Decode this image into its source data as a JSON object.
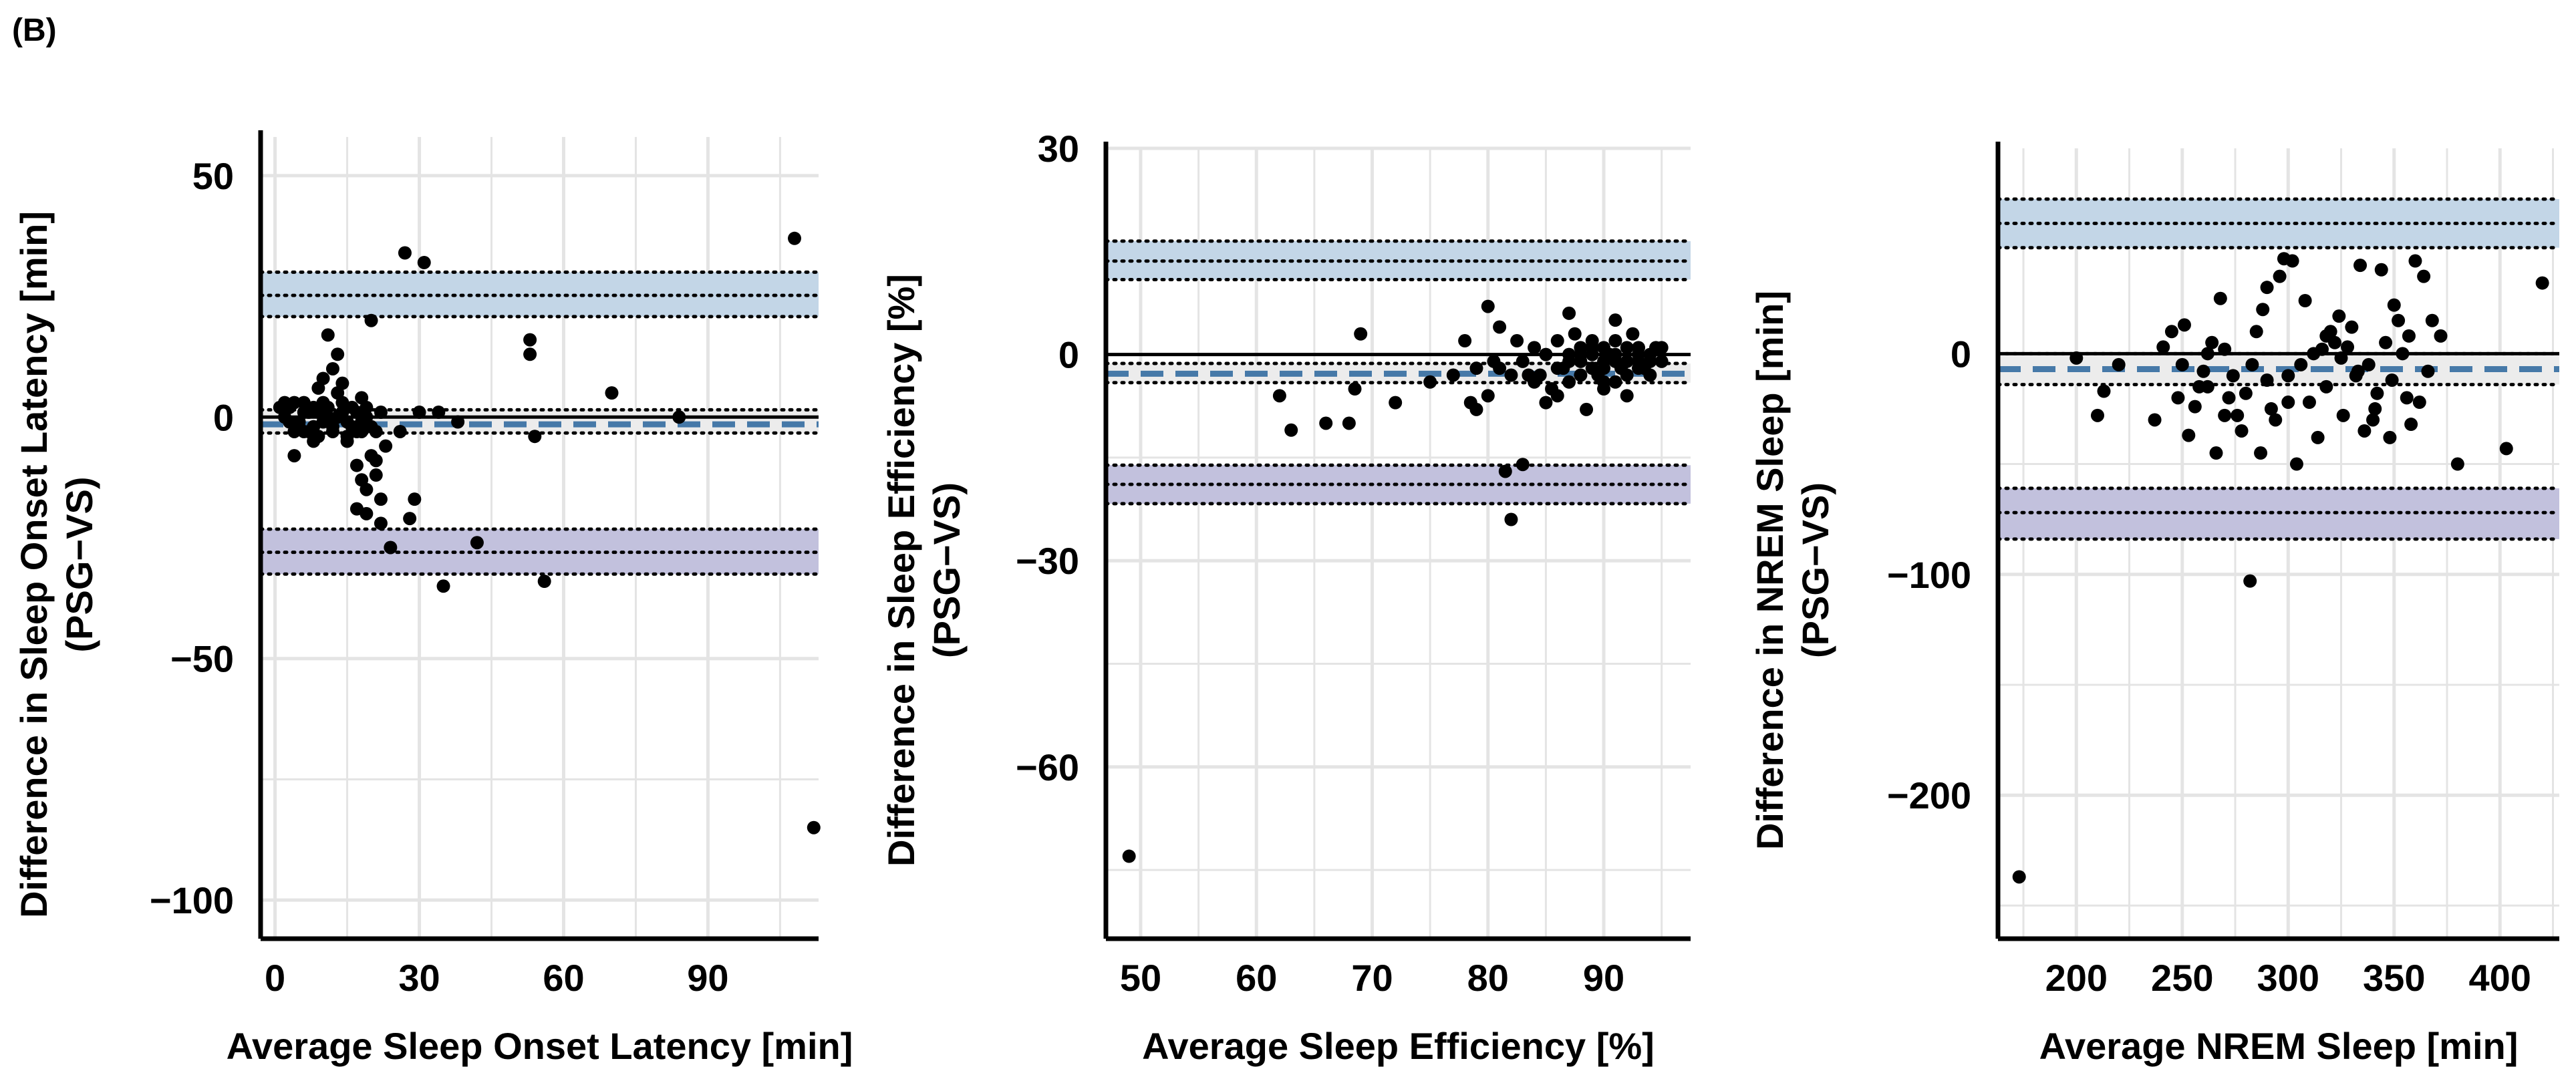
{
  "figure": {
    "panel_label": "(B)"
  },
  "colors": {
    "upper_band": "#c3d6e7",
    "lower_band": "#c2c1dd",
    "mean_band": "#ececec",
    "bias_line": "#4679a8",
    "zero_line": "#000000",
    "grid": "#e4e4e4",
    "point": "#000000"
  },
  "chart_data": [
    {
      "type": "scatter",
      "title": "",
      "xlabel": "Average Sleep Onset Latency [min]",
      "ylabel": [
        "Difference in Sleep Onset Latency [min]",
        "(PSG−VS)"
      ],
      "xlim": [
        -3,
        113
      ],
      "ylim": [
        -108,
        58
      ],
      "xticks": [
        0,
        30,
        60,
        90
      ],
      "yticks": [
        50,
        0,
        -50,
        -100
      ],
      "xtick_labels": [
        "0",
        "30",
        "60",
        "90"
      ],
      "ytick_labels": [
        "50",
        "0",
        "−50",
        "−100"
      ],
      "bias": -1.5,
      "bias_ci": [
        -3.3,
        1.5
      ],
      "upper_loa": 25.2,
      "upper_loa_ci": [
        20.8,
        30.0
      ],
      "lower_loa": -28.0,
      "lower_loa_ci": [
        -32.5,
        -23.2
      ],
      "points": [
        [
          1,
          2
        ],
        [
          2,
          0
        ],
        [
          3,
          -1
        ],
        [
          4,
          3
        ],
        [
          5,
          -2
        ],
        [
          6,
          1
        ],
        [
          7,
          -3
        ],
        [
          8,
          2
        ],
        [
          9,
          -4
        ],
        [
          10,
          3
        ],
        [
          11,
          0
        ],
        [
          12,
          -2
        ],
        [
          13,
          5
        ],
        [
          14,
          1
        ],
        [
          15,
          -1
        ],
        [
          16,
          2
        ],
        [
          17,
          -3
        ],
        [
          18,
          4
        ],
        [
          19,
          0
        ],
        [
          20,
          -2
        ],
        [
          2,
          3
        ],
        [
          3,
          2
        ],
        [
          4,
          -3
        ],
        [
          5,
          -1
        ],
        [
          6,
          3
        ],
        [
          7,
          1
        ],
        [
          8,
          -2
        ],
        [
          9,
          1
        ],
        [
          10,
          -1
        ],
        [
          11,
          2
        ],
        [
          12,
          -3
        ],
        [
          13,
          0
        ],
        [
          14,
          3
        ],
        [
          15,
          -4
        ],
        [
          16,
          -2
        ],
        [
          17,
          1
        ],
        [
          18,
          -1
        ],
        [
          19,
          2
        ],
        [
          21,
          -3
        ],
        [
          22,
          1
        ],
        [
          4,
          -8
        ],
        [
          9,
          6
        ],
        [
          10,
          8
        ],
        [
          11,
          17
        ],
        [
          12,
          10
        ],
        [
          13,
          13
        ],
        [
          14,
          7
        ],
        [
          8,
          -5
        ],
        [
          6,
          -3
        ],
        [
          15,
          -5
        ],
        [
          17,
          -10
        ],
        [
          18,
          -13
        ],
        [
          19,
          -15
        ],
        [
          20,
          -8
        ],
        [
          21,
          -12
        ],
        [
          22,
          -17
        ],
        [
          17,
          -19
        ],
        [
          19,
          -20
        ],
        [
          22,
          -22
        ],
        [
          20,
          20
        ],
        [
          23,
          -6
        ],
        [
          21,
          -9
        ],
        [
          18,
          -3
        ],
        [
          24,
          -27
        ],
        [
          26,
          -3
        ],
        [
          27,
          34
        ],
        [
          28,
          -21
        ],
        [
          29,
          -17
        ],
        [
          30,
          1
        ],
        [
          31,
          32
        ],
        [
          34,
          1
        ],
        [
          35,
          -35
        ],
        [
          38,
          -1
        ],
        [
          42,
          -26
        ],
        [
          53,
          16
        ],
        [
          53,
          13
        ],
        [
          54,
          -4
        ],
        [
          56,
          -34
        ],
        [
          70,
          5
        ],
        [
          84,
          0
        ],
        [
          108,
          37
        ],
        [
          112,
          -85
        ]
      ]
    },
    {
      "type": "scatter",
      "title": "",
      "xlabel": "Average Sleep Efficiency [%]",
      "ylabel": [
        "Difference in Sleep Efficiency [%]",
        "(PSG−VS)"
      ],
      "xlim": [
        47,
        97.5
      ],
      "ylim": [
        -85,
        30
      ],
      "xticks": [
        50,
        60,
        70,
        80,
        90
      ],
      "yticks": [
        30,
        0,
        -30,
        -60
      ],
      "xtick_labels": [
        "50",
        "60",
        "70",
        "80",
        "90"
      ],
      "ytick_labels": [
        "30",
        "0",
        "−30",
        "−60"
      ],
      "bias": -2.8,
      "bias_ci": [
        -4.1,
        -1.3
      ],
      "upper_loa": 13.6,
      "upper_loa_ci": [
        10.9,
        16.5
      ],
      "lower_loa": -18.9,
      "lower_loa_ci": [
        -21.7,
        -16.1
      ],
      "points": [
        [
          49,
          -73
        ],
        [
          62,
          -6
        ],
        [
          63,
          -11
        ],
        [
          66,
          -10
        ],
        [
          68,
          -10
        ],
        [
          68.5,
          -5
        ],
        [
          69,
          3
        ],
        [
          72,
          -7
        ],
        [
          75,
          -4
        ],
        [
          77,
          -3
        ],
        [
          78,
          2
        ],
        [
          78.5,
          -7
        ],
        [
          79,
          -2
        ],
        [
          80,
          7
        ],
        [
          80.5,
          -1
        ],
        [
          81,
          4
        ],
        [
          81.5,
          -17
        ],
        [
          82,
          -24
        ],
        [
          82.5,
          2
        ],
        [
          83,
          -16
        ],
        [
          83.5,
          -3
        ],
        [
          84,
          1
        ],
        [
          84.5,
          -3
        ],
        [
          85,
          0
        ],
        [
          85.5,
          -5
        ],
        [
          86,
          2
        ],
        [
          86.5,
          -2
        ],
        [
          87,
          6
        ],
        [
          87.5,
          3
        ],
        [
          88,
          -1
        ],
        [
          88.5,
          -8
        ],
        [
          89,
          1
        ],
        [
          89.5,
          -3
        ],
        [
          90,
          -4
        ],
        [
          90.5,
          0
        ],
        [
          91,
          5
        ],
        [
          91.5,
          -2
        ],
        [
          92,
          -6
        ],
        [
          92.5,
          3
        ],
        [
          93,
          -1
        ],
        [
          93.5,
          -2
        ],
        [
          94,
          0
        ],
        [
          94.5,
          1
        ],
        [
          95,
          -1
        ],
        [
          85,
          -7
        ],
        [
          86,
          -6
        ],
        [
          87,
          -4
        ],
        [
          88,
          -3
        ],
        [
          89,
          -2
        ],
        [
          90,
          -1
        ],
        [
          91,
          0
        ],
        [
          92,
          -1
        ],
        [
          93,
          -2
        ],
        [
          94,
          -3
        ],
        [
          95,
          1
        ],
        [
          89,
          2
        ],
        [
          90,
          1
        ],
        [
          91,
          2
        ],
        [
          92,
          1
        ],
        [
          93,
          1
        ],
        [
          88,
          0
        ],
        [
          87,
          -1
        ],
        [
          86,
          -2
        ],
        [
          84,
          -4
        ],
        [
          83,
          -1
        ],
        [
          82,
          -3
        ],
        [
          81,
          -2
        ],
        [
          80,
          -6
        ],
        [
          79,
          -8
        ],
        [
          90,
          -5
        ],
        [
          91,
          -4
        ],
        [
          92,
          -3
        ],
        [
          93,
          0
        ],
        [
          94,
          -1
        ],
        [
          89,
          0
        ],
        [
          90,
          -2
        ],
        [
          91,
          -1
        ],
        [
          88,
          1
        ],
        [
          87,
          0
        ]
      ]
    },
    {
      "type": "scatter",
      "title": "",
      "xlabel": "Average NREM Sleep [min]",
      "ylabel": [
        "Difference in NREM Sleep [min]",
        "(PSG−VS)"
      ],
      "xlim": [
        163,
        428
      ],
      "ylim": [
        -265,
        93
      ],
      "xticks": [
        200,
        250,
        300,
        350,
        400
      ],
      "yticks": [
        0,
        -100,
        -200
      ],
      "xtick_labels": [
        "200",
        "250",
        "300",
        "350",
        "400"
      ],
      "ytick_labels": [
        "0",
        "−100",
        "−200"
      ],
      "bias": -7.0,
      "bias_ci": [
        -14.0,
        0.0
      ],
      "upper_loa": 59.0,
      "upper_loa_ci": [
        48.0,
        70.0
      ],
      "lower_loa": -72.0,
      "lower_loa_ci": [
        -84.0,
        -61.0
      ],
      "points": [
        [
          173,
          -237
        ],
        [
          200,
          -2
        ],
        [
          210,
          -28
        ],
        [
          213,
          -17
        ],
        [
          220,
          -5
        ],
        [
          237,
          -30
        ],
        [
          241,
          3
        ],
        [
          245,
          10
        ],
        [
          248,
          -20
        ],
        [
          251,
          13
        ],
        [
          253,
          -37
        ],
        [
          256,
          -24
        ],
        [
          258,
          -15
        ],
        [
          260,
          -8
        ],
        [
          262,
          0
        ],
        [
          264,
          5
        ],
        [
          266,
          -45
        ],
        [
          268,
          25
        ],
        [
          270,
          2
        ],
        [
          272,
          -20
        ],
        [
          274,
          -10
        ],
        [
          276,
          -28
        ],
        [
          278,
          -35
        ],
        [
          280,
          -18
        ],
        [
          282,
          -103
        ],
        [
          283,
          -5
        ],
        [
          285,
          10
        ],
        [
          287,
          -45
        ],
        [
          288,
          20
        ],
        [
          290,
          30
        ],
        [
          292,
          -25
        ],
        [
          294,
          -30
        ],
        [
          296,
          35
        ],
        [
          298,
          43
        ],
        [
          300,
          -10
        ],
        [
          302,
          42
        ],
        [
          304,
          -50
        ],
        [
          306,
          -5
        ],
        [
          308,
          24
        ],
        [
          310,
          -22
        ],
        [
          312,
          0
        ],
        [
          314,
          -38
        ],
        [
          316,
          2
        ],
        [
          318,
          -15
        ],
        [
          320,
          10
        ],
        [
          322,
          5
        ],
        [
          324,
          17
        ],
        [
          326,
          -28
        ],
        [
          328,
          3
        ],
        [
          330,
          12
        ],
        [
          332,
          -10
        ],
        [
          334,
          40
        ],
        [
          336,
          -35
        ],
        [
          338,
          -5
        ],
        [
          340,
          -30
        ],
        [
          342,
          -18
        ],
        [
          344,
          38
        ],
        [
          346,
          5
        ],
        [
          348,
          -38
        ],
        [
          350,
          22
        ],
        [
          352,
          15
        ],
        [
          354,
          0
        ],
        [
          356,
          -20
        ],
        [
          358,
          -32
        ],
        [
          360,
          42
        ],
        [
          362,
          -22
        ],
        [
          364,
          35
        ],
        [
          366,
          -8
        ],
        [
          368,
          15
        ],
        [
          372,
          8
        ],
        [
          380,
          -50
        ],
        [
          403,
          -43
        ],
        [
          420,
          32
        ],
        [
          318,
          8
        ],
        [
          325,
          -2
        ],
        [
          333,
          -8
        ],
        [
          341,
          -25
        ],
        [
          349,
          -12
        ],
        [
          357,
          8
        ],
        [
          300,
          -22
        ],
        [
          290,
          -12
        ],
        [
          270,
          -28
        ],
        [
          262,
          -15
        ],
        [
          250,
          -5
        ]
      ]
    }
  ]
}
